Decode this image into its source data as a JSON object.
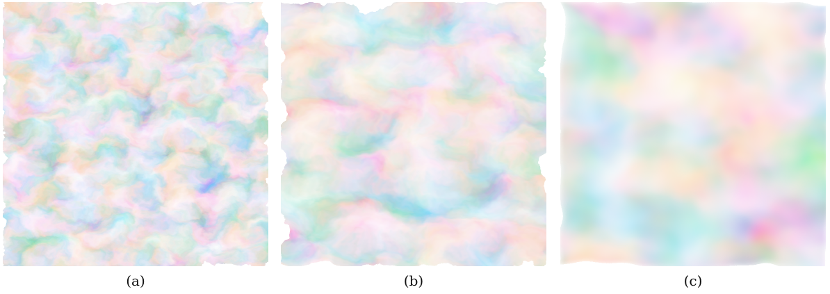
{
  "panels": [
    {
      "caption": "(a)"
    },
    {
      "caption": "(b)"
    },
    {
      "caption": "(c)"
    }
  ],
  "colors": {
    "warm": "#f4a860",
    "warm_bright": "#ffd040",
    "cool": "#2255ee",
    "cool_dark": "#101a80",
    "neutral": "#8a8fb0"
  }
}
